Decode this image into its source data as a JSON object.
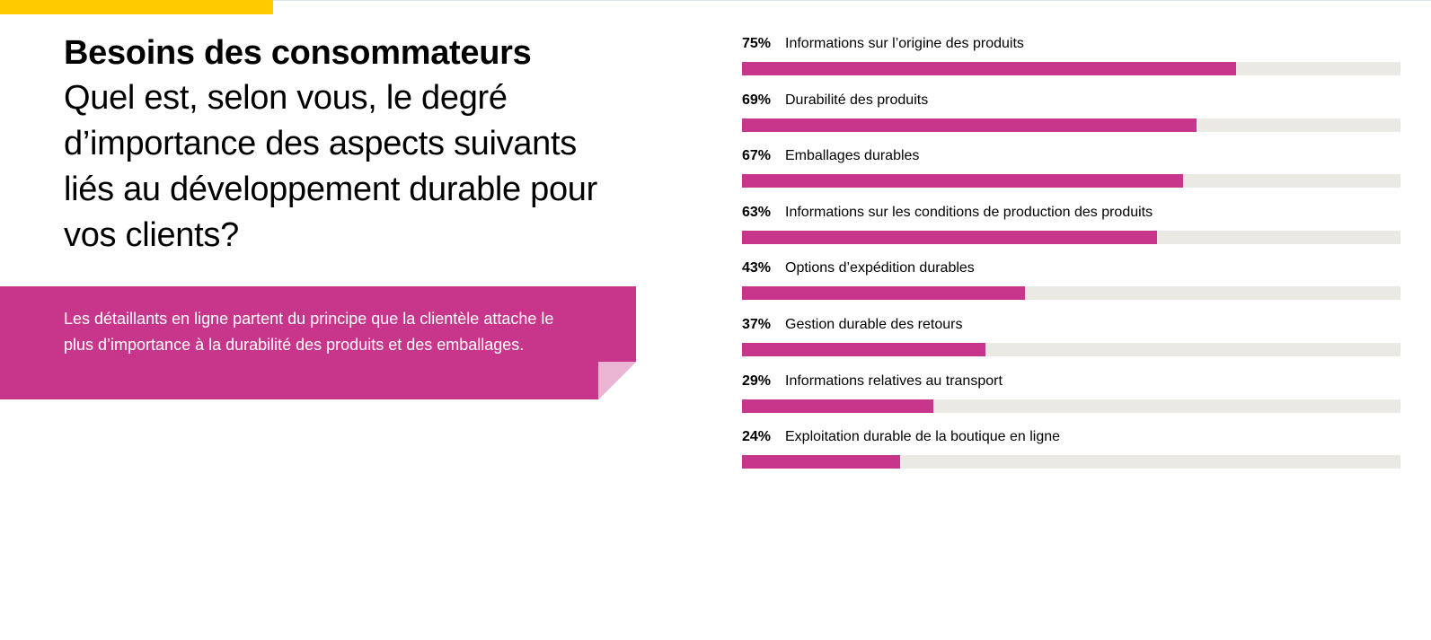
{
  "colors": {
    "accent_yellow": "#ffcc00",
    "brand_magenta": "#c8368b",
    "fold_pink": "#e9b5d3",
    "track_gray": "#ebe9e4"
  },
  "header": {
    "title": "Besoins des consommateurs",
    "question": "Quel est, selon vous, le degré d’importance des aspects suivants liés au développement durable pour vos clients?"
  },
  "callout": {
    "text": "Les détaillants en ligne partent du principe que la clientèle attache le plus d’importance à la durabilité des produits et des emballages."
  },
  "chart_data": {
    "type": "bar",
    "orientation": "horizontal",
    "unit": "%",
    "xlim": [
      0,
      100
    ],
    "grid": false,
    "categories": [
      "Informations sur l’origine des produits",
      "Durabilité des produits",
      "Emballages durables",
      "Informations sur les conditions de production des produits",
      "Options d’expédition durables",
      "Gestion durable des retours",
      "Informations relatives au transport",
      "Exploitation durable de la boutique en ligne"
    ],
    "values": [
      75,
      69,
      67,
      63,
      43,
      37,
      29,
      24
    ],
    "value_labels": [
      "75%",
      "69%",
      "67%",
      "63%",
      "43%",
      "37%",
      "29%",
      "24%"
    ]
  }
}
